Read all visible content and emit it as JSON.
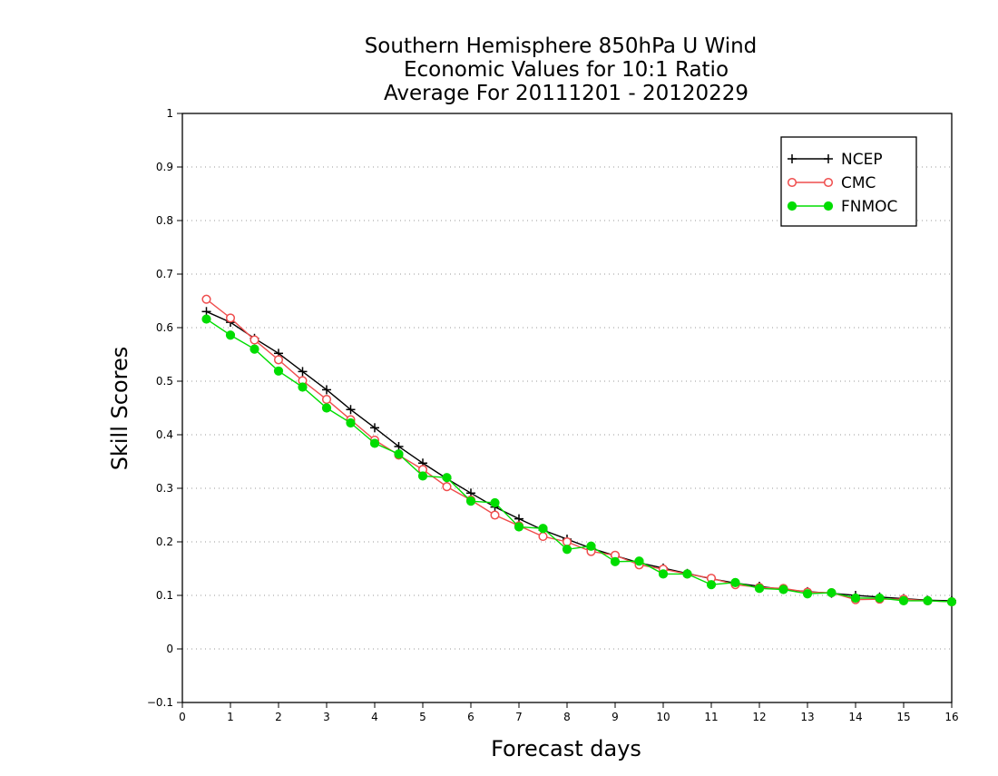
{
  "chart_data": {
    "type": "line",
    "title": [
      "Southern Hemisphere 850hPa U Wind",
      "Economic Values for 10:1 Ratio",
      "Average For 20111201 - 20120229"
    ],
    "xlabel": "Forecast days",
    "ylabel": "Skill Scores",
    "xlim": [
      0,
      16
    ],
    "ylim": [
      -0.1,
      1
    ],
    "x_ticks": [
      "0",
      "1",
      "2",
      "3",
      "4",
      "5",
      "6",
      "7",
      "8",
      "9",
      "10",
      "11",
      "12",
      "13",
      "14",
      "15",
      "16"
    ],
    "y_ticks": [
      "−0.1",
      "0",
      "0.1",
      "0.2",
      "0.3",
      "0.4",
      "0.5",
      "0.6",
      "0.7",
      "0.8",
      "0.9",
      "1"
    ],
    "y_tick_values": [
      -0.1,
      0,
      0.1,
      0.2,
      0.3,
      0.4,
      0.5,
      0.6,
      0.7,
      0.8,
      0.9,
      1
    ],
    "grid": "horizontal dotted",
    "legend_position": "top-right",
    "x": [
      0.5,
      1,
      1.5,
      2,
      2.5,
      3,
      3.5,
      4,
      4.5,
      5,
      5.5,
      6,
      6.5,
      7,
      7.5,
      8,
      8.5,
      9,
      9.5,
      10,
      10.5,
      11,
      11.5,
      12,
      12.5,
      13,
      13.5,
      14,
      14.5,
      15,
      15.5,
      16
    ],
    "series": [
      {
        "name": "NCEP",
        "color": "#000000",
        "marker": "plus",
        "values": [
          0.63,
          0.61,
          0.58,
          0.552,
          0.518,
          0.484,
          0.447,
          0.413,
          0.378,
          0.347,
          0.318,
          0.291,
          0.265,
          0.243,
          0.222,
          0.205,
          0.188,
          0.174,
          0.161,
          0.151,
          0.141,
          0.131,
          0.123,
          0.117,
          0.111,
          0.107,
          0.104,
          0.1,
          0.097,
          0.094,
          0.091,
          0.09
        ]
      },
      {
        "name": "CMC",
        "color": "#ef4d4d",
        "marker": "open-circle",
        "values": [
          0.653,
          0.618,
          0.577,
          0.54,
          0.501,
          0.466,
          0.428,
          0.39,
          0.362,
          0.335,
          0.303,
          0.278,
          0.25,
          0.23,
          0.21,
          0.2,
          0.182,
          0.175,
          0.157,
          0.149,
          0.14,
          0.132,
          0.12,
          0.115,
          0.113,
          0.106,
          0.105,
          0.092,
          0.093,
          0.093,
          0.09,
          0.088
        ]
      },
      {
        "name": "FNMOC",
        "color": "#00dd00",
        "marker": "filled-circle",
        "values": [
          0.616,
          0.586,
          0.56,
          0.519,
          0.489,
          0.45,
          0.422,
          0.384,
          0.364,
          0.323,
          0.32,
          0.276,
          0.273,
          0.228,
          0.225,
          0.186,
          0.192,
          0.163,
          0.164,
          0.14,
          0.14,
          0.12,
          0.124,
          0.113,
          0.111,
          0.103,
          0.105,
          0.095,
          0.095,
          0.09,
          0.09,
          0.088
        ]
      }
    ]
  }
}
